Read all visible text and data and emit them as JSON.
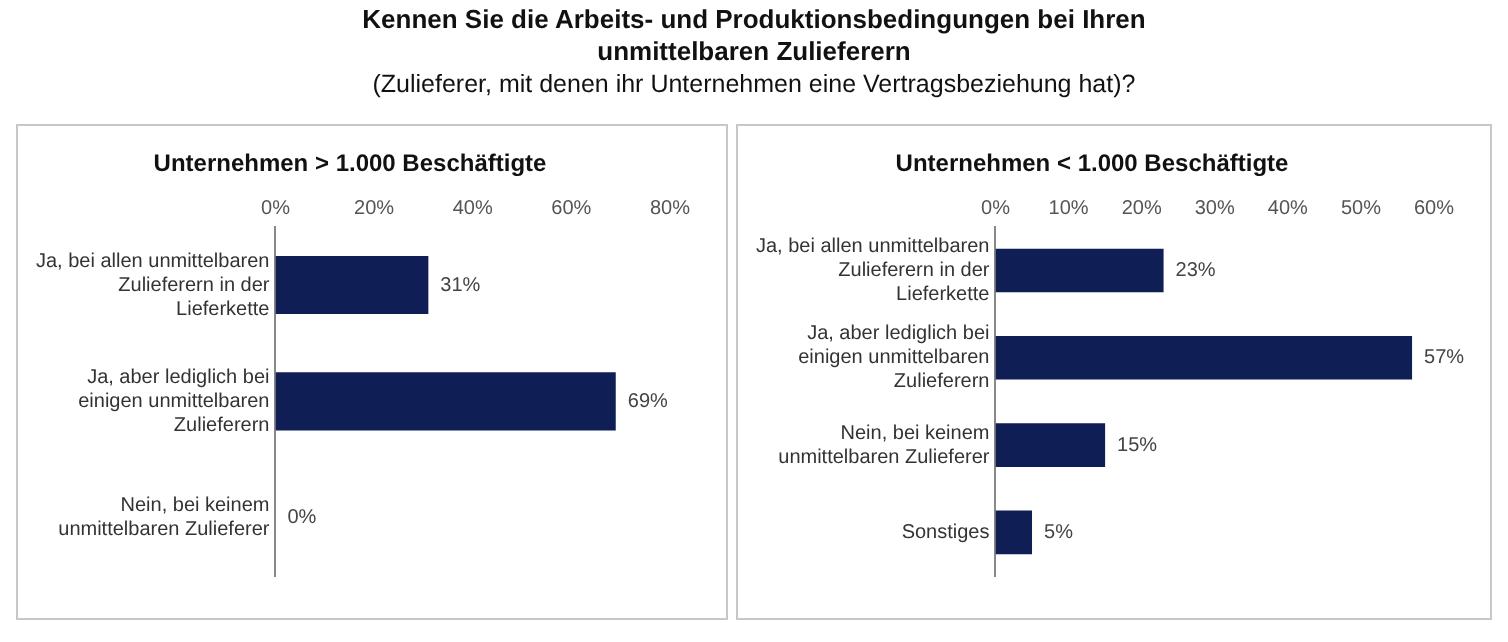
{
  "chart_data": [
    {
      "type": "other",
      "title": "Kennen Sie die Arbeits- und Produktionsbedingungen bei Ihren unmittelbaren Zulieferern",
      "subtitle": "(Zulieferer, mit denen ihr Unternehmen eine Vertragsbeziehung hat)?"
    },
    {
      "type": "bar",
      "orientation": "horizontal",
      "title": "Unternehmen > 1.000 Beschäftigte",
      "categories": [
        "Ja, bei allen unmittelbaren Zulieferern in der Lieferkette",
        "Ja, aber lediglich bei einigen unmittelbaren Zulieferern",
        "Nein, bei keinem unmittelbaren Zulieferer"
      ],
      "values": [
        31,
        69,
        0
      ],
      "value_labels": [
        "31%",
        "69%",
        "0%"
      ],
      "color": "#0f1f56",
      "xlim": [
        0,
        80
      ],
      "xticks": [
        {
          "value": 0,
          "label": "0%"
        },
        {
          "value": 20,
          "label": "20%"
        },
        {
          "value": 40,
          "label": "40%"
        },
        {
          "value": 60,
          "label": "60%"
        },
        {
          "value": 80,
          "label": "80%"
        }
      ],
      "grid": false,
      "legend": false
    },
    {
      "type": "bar",
      "orientation": "horizontal",
      "title": "Unternehmen < 1.000 Beschäftigte",
      "categories": [
        "Ja, bei allen unmittelbaren Zulieferern in der Lieferkette",
        "Ja, aber lediglich bei einigen unmittelbaren Zulieferern",
        "Nein, bei keinem unmittelbaren Zulieferer",
        "Sonstiges"
      ],
      "values": [
        23,
        57,
        15,
        5
      ],
      "value_labels": [
        "23%",
        "57%",
        "15%",
        "5%"
      ],
      "color": "#0f1f56",
      "xlim": [
        0,
        60
      ],
      "xticks": [
        {
          "value": 0,
          "label": "0%"
        },
        {
          "value": 10,
          "label": "10%"
        },
        {
          "value": 20,
          "label": "20%"
        },
        {
          "value": 30,
          "label": "30%"
        },
        {
          "value": 40,
          "label": "40%"
        },
        {
          "value": 50,
          "label": "50%"
        },
        {
          "value": 60,
          "label": "60%"
        }
      ],
      "grid": false,
      "legend": false
    }
  ]
}
